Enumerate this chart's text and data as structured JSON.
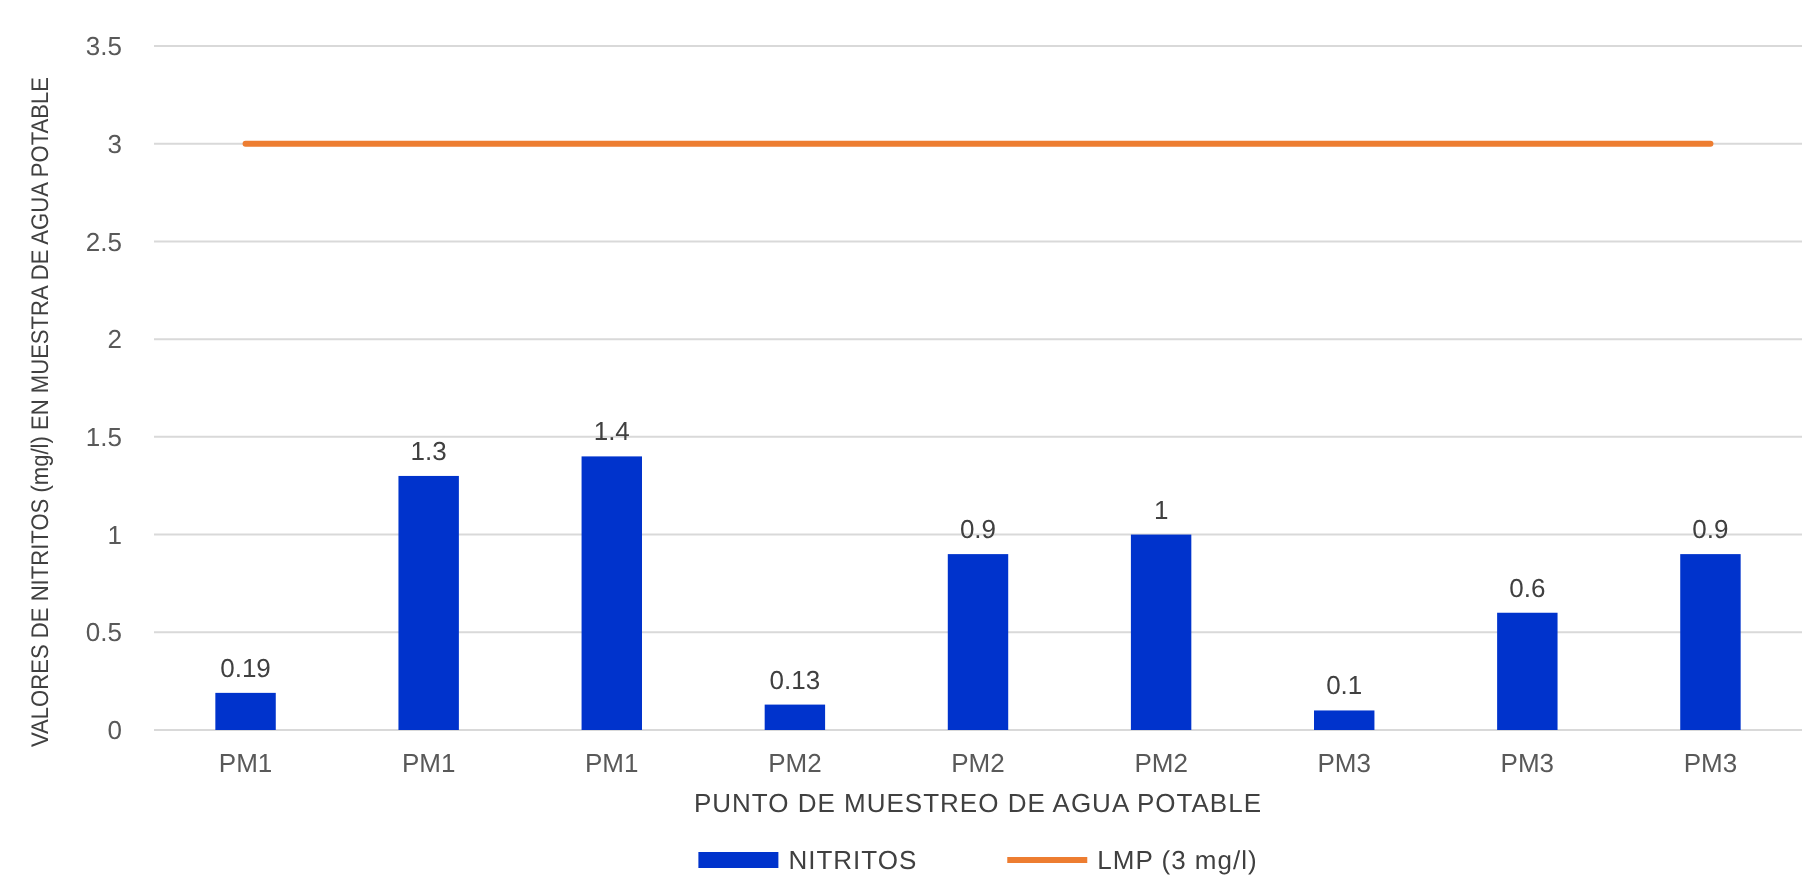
{
  "chart_data": {
    "type": "bar",
    "xlabel": "PUNTO DE MUESTREO DE AGUA POTABLE",
    "ylabel": "VALORES DE NITRITOS (mg/l) EN MUESTRA DE AGUA POTABLE",
    "categories": [
      "PM1",
      "PM1",
      "PM1",
      "PM2",
      "PM2",
      "PM2",
      "PM3",
      "PM3",
      "PM3"
    ],
    "series": [
      {
        "name": "NITRITOS",
        "color": "#0033cc",
        "values": [
          0.19,
          1.3,
          1.4,
          0.13,
          0.9,
          1,
          0.1,
          0.6,
          0.9
        ],
        "value_labels": [
          "0.19",
          "1.3",
          "1.4",
          "0.13",
          "0.9",
          "1",
          "0.1",
          "0.6",
          "0.9"
        ]
      },
      {
        "type": "line",
        "name": "LMP (3 mg/l)",
        "color": "#ed7d31",
        "values": [
          3,
          3,
          3,
          3,
          3,
          3,
          3,
          3,
          3
        ]
      }
    ],
    "ylim": [
      0,
      3.5
    ],
    "yticks": [
      0,
      0.5,
      1,
      1.5,
      2,
      2.5,
      3,
      3.5
    ],
    "grid": "y",
    "legend": "bottom"
  }
}
